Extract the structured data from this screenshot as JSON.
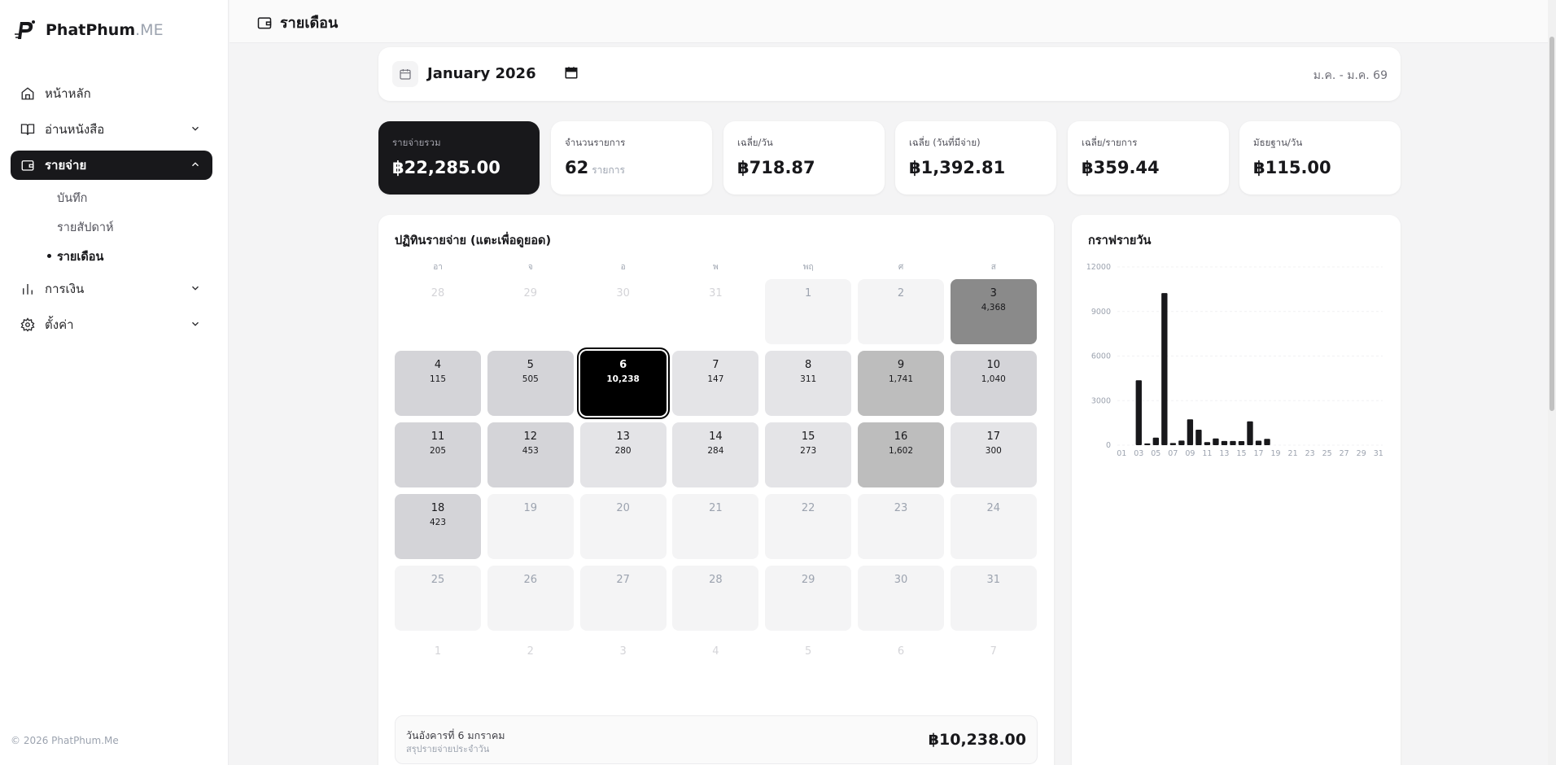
{
  "brand": {
    "name": "PhatPhum",
    "suffix": ".ME"
  },
  "sidebar": {
    "items": [
      {
        "label": "หน้าหลัก",
        "icon": "home-icon"
      },
      {
        "label": "อ่านหนังสือ",
        "icon": "book-icon"
      },
      {
        "label": "รายจ่าย",
        "icon": "wallet-icon"
      },
      {
        "label": "การเงิน",
        "icon": "bar-chart-icon"
      },
      {
        "label": "ตั้งค่า",
        "icon": "gear-icon"
      }
    ],
    "subitems": [
      {
        "label": "บันทึก"
      },
      {
        "label": "รายสัปดาห์"
      },
      {
        "label": "รายเดือน"
      }
    ],
    "footer": "© 2026 PhatPhum.Me"
  },
  "header": {
    "title": "รายเดือน"
  },
  "month_picker": {
    "value": "January 2026",
    "range": "ม.ค. - ม.ค. 69"
  },
  "stats": [
    {
      "label": "รายจ่ายรวม",
      "value": "฿22,285.00",
      "unit": ""
    },
    {
      "label": "จำนวนรายการ",
      "value": "62",
      "unit": "รายการ"
    },
    {
      "label": "เฉลี่ย/วัน",
      "value": "฿718.87",
      "unit": ""
    },
    {
      "label": "เฉลี่ย (วันที่มีจ่าย)",
      "value": "฿1,392.81",
      "unit": ""
    },
    {
      "label": "เฉลี่ย/รายการ",
      "value": "฿359.44",
      "unit": ""
    },
    {
      "label": "มัธยฐาน/วัน",
      "value": "฿115.00",
      "unit": ""
    }
  ],
  "calendar": {
    "title": "ปฏิทินรายจ่าย (แตะเพื่อดูยอด)",
    "weekdays": [
      "อา",
      "จ",
      "อ",
      "พ",
      "พฤ",
      "ศ",
      "ส"
    ],
    "leading_days": [
      "28",
      "29",
      "30",
      "31"
    ],
    "trailing_days": [
      "1",
      "2",
      "3",
      "4",
      "5",
      "6",
      "7"
    ],
    "days": [
      {
        "d": "1",
        "a": "",
        "lvl": "empty"
      },
      {
        "d": "2",
        "a": "",
        "lvl": "empty"
      },
      {
        "d": "3",
        "a": "4,368",
        "lvl": "l4"
      },
      {
        "d": "4",
        "a": "115",
        "lvl": "l2"
      },
      {
        "d": "5",
        "a": "505",
        "lvl": "l2"
      },
      {
        "d": "6",
        "a": "10,238",
        "lvl": "sel"
      },
      {
        "d": "7",
        "a": "147",
        "lvl": "l1"
      },
      {
        "d": "8",
        "a": "311",
        "lvl": "l1"
      },
      {
        "d": "9",
        "a": "1,741",
        "lvl": "l3"
      },
      {
        "d": "10",
        "a": "1,040",
        "lvl": "l2"
      },
      {
        "d": "11",
        "a": "205",
        "lvl": "l2"
      },
      {
        "d": "12",
        "a": "453",
        "lvl": "l2"
      },
      {
        "d": "13",
        "a": "280",
        "lvl": "l1"
      },
      {
        "d": "14",
        "a": "284",
        "lvl": "l1"
      },
      {
        "d": "15",
        "a": "273",
        "lvl": "l1"
      },
      {
        "d": "16",
        "a": "1,602",
        "lvl": "l3"
      },
      {
        "d": "17",
        "a": "300",
        "lvl": "l1"
      },
      {
        "d": "18",
        "a": "423",
        "lvl": "l2"
      },
      {
        "d": "19",
        "a": "",
        "lvl": "empty"
      },
      {
        "d": "20",
        "a": "",
        "lvl": "empty"
      },
      {
        "d": "21",
        "a": "",
        "lvl": "empty"
      },
      {
        "d": "22",
        "a": "",
        "lvl": "empty"
      },
      {
        "d": "23",
        "a": "",
        "lvl": "empty"
      },
      {
        "d": "24",
        "a": "",
        "lvl": "empty"
      },
      {
        "d": "25",
        "a": "",
        "lvl": "empty"
      },
      {
        "d": "26",
        "a": "",
        "lvl": "empty"
      },
      {
        "d": "27",
        "a": "",
        "lvl": "empty"
      },
      {
        "d": "28",
        "a": "",
        "lvl": "empty"
      },
      {
        "d": "29",
        "a": "",
        "lvl": "empty"
      },
      {
        "d": "30",
        "a": "",
        "lvl": "empty"
      },
      {
        "d": "31",
        "a": "",
        "lvl": "empty"
      }
    ]
  },
  "selected_day": {
    "title": "วันอังคารที่ 6 มกราคม",
    "subtitle": "สรุปรายจ่ายประจำวัน",
    "amount": "฿10,238.00"
  },
  "chart_data": {
    "type": "bar",
    "title": "กราฟรายวัน",
    "x": [
      "01",
      "02",
      "03",
      "04",
      "05",
      "06",
      "07",
      "08",
      "09",
      "10",
      "11",
      "12",
      "13",
      "14",
      "15",
      "16",
      "17",
      "18",
      "19",
      "20",
      "21",
      "22",
      "23",
      "24",
      "25",
      "26",
      "27",
      "28",
      "29",
      "30",
      "31"
    ],
    "x_tick_labels": [
      "01",
      "03",
      "05",
      "07",
      "09",
      "11",
      "13",
      "15",
      "17",
      "19",
      "21",
      "23",
      "25",
      "27",
      "29",
      "31"
    ],
    "values": [
      0,
      0,
      4368,
      115,
      505,
      10238,
      147,
      311,
      1741,
      1040,
      205,
      453,
      280,
      284,
      273,
      1602,
      300,
      423,
      0,
      0,
      0,
      0,
      0,
      0,
      0,
      0,
      0,
      0,
      0,
      0,
      0
    ],
    "ylim": [
      0,
      12000
    ],
    "yticks": [
      "12000",
      "9000",
      "6000",
      "3000",
      "0"
    ],
    "grid": true,
    "bar_color": "#18181b"
  }
}
